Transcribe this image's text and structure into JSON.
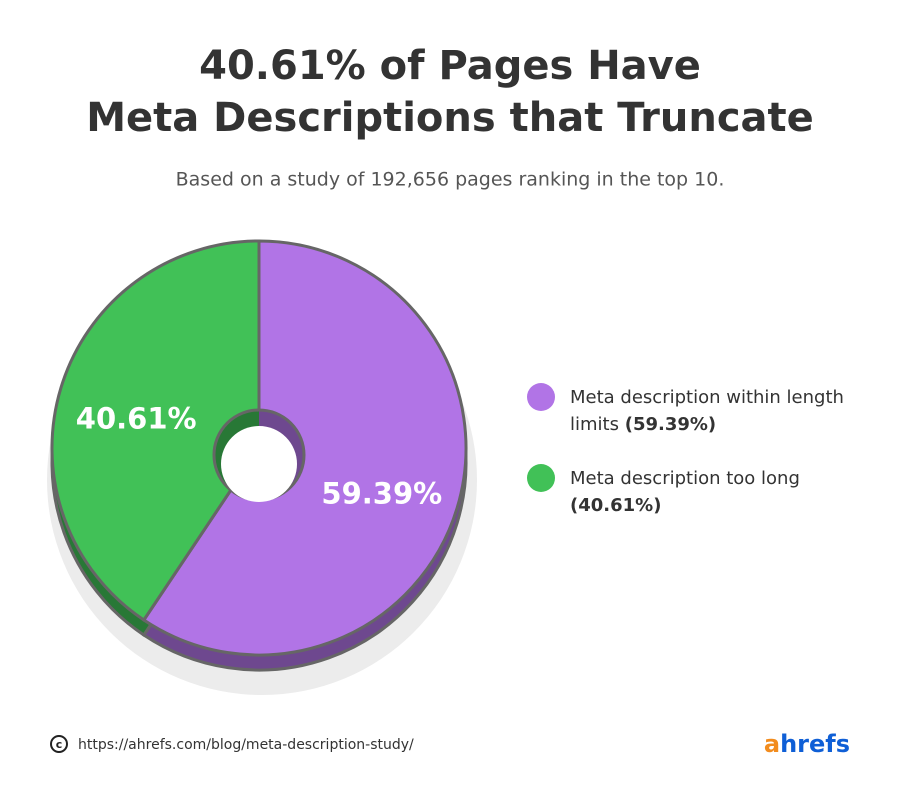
{
  "chart_data": {
    "type": "pie",
    "title": [
      "40.61% of Pages Have",
      "Meta Descriptions that Truncate"
    ],
    "subtitle": "Based on a study of 192,656 pages ranking in the top 10.",
    "categories": [
      "Meta description within length limits",
      "Meta description too long"
    ],
    "values": [
      59.39,
      40.61
    ],
    "value_labels": [
      "59.39%",
      "40.61%"
    ],
    "legend_value_labels": [
      "(59.39%)",
      "(40.61%)"
    ],
    "colors": [
      "#b174e6",
      "#41c157"
    ],
    "legend": "right"
  },
  "footer": {
    "url": "https://ahrefs.com/blog/meta-description-study/",
    "logo": {
      "accent": "a",
      "rest": "hrefs"
    }
  }
}
